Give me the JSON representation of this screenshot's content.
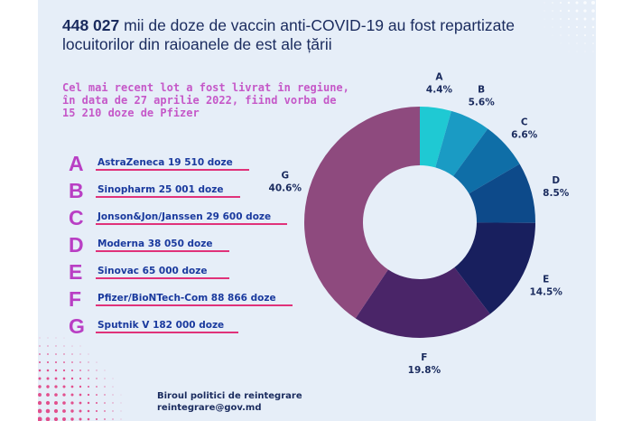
{
  "title_bold": "448 027",
  "title_rest": " mii de doze de vaccin anti-COVID-19 au fost repartizate locuitorilor din raioanele de est ale țării",
  "subtitle": "Cel mai recent lot a fost livrat în regiune, în data de 27 aprilie 2022, fiind vorba de 15 210 doze de Pfizer",
  "legend": [
    {
      "letter": "A",
      "text": "AstraZeneca 19 510 doze"
    },
    {
      "letter": "B",
      "text": "Sinopharm 25 001 doze"
    },
    {
      "letter": "C",
      "text": "Jonson&Jon/Janssen 29 600 doze"
    },
    {
      "letter": "D",
      "text": "Moderna 38 050 doze"
    },
    {
      "letter": "E",
      "text": "Sinovac 65 000 doze"
    },
    {
      "letter": "F",
      "text": "Pfizer/BioNTech-Com 88 866 doze"
    },
    {
      "letter": "G",
      "text": "Sputnik V 182 000 doze"
    }
  ],
  "footer": {
    "line1": "Biroul politici de reintegrare",
    "line2": "reintegrare@gov.md"
  },
  "colors": {
    "accent_letters": "#b93fc4",
    "underline": "#e0327a",
    "subtitle": "#c558c8",
    "title": "#1a2b5e"
  },
  "chart_data": {
    "type": "pie",
    "donut": true,
    "title": "",
    "categories": [
      "A",
      "B",
      "C",
      "D",
      "E",
      "F",
      "G"
    ],
    "values": [
      4.4,
      5.6,
      6.6,
      8.5,
      14.5,
      19.8,
      40.6
    ],
    "value_labels": [
      "4.4%",
      "5.6%",
      "6.6%",
      "8.5%",
      "14.5%",
      "19.8%",
      "40.6%"
    ],
    "colors": [
      "#1fc9d3",
      "#1a9bc4",
      "#0f6ea7",
      "#0d4a8a",
      "#181f5e",
      "#4a2568",
      "#8e4a7e"
    ]
  }
}
